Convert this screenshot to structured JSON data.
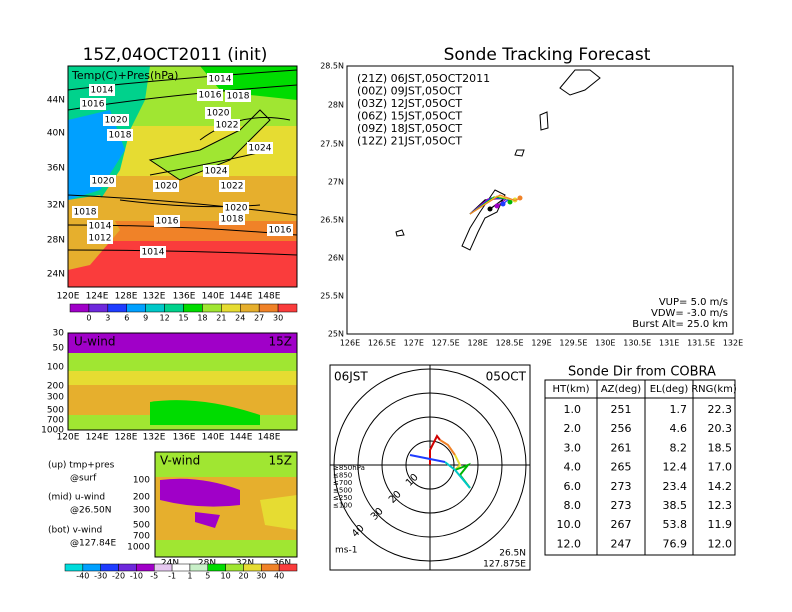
{
  "left_map": {
    "title": "15Z,04OCT2011 (init)",
    "label": "Temp(C)+Pres(hPa)",
    "lat_labels": [
      "44N",
      "40N",
      "36N",
      "32N",
      "28N",
      "24N"
    ],
    "lon_labels": [
      "120E",
      "124E",
      "128E",
      "132E",
      "136E",
      "140E",
      "144E",
      "148E"
    ],
    "isobar_labels": [
      "1014",
      "1016",
      "1014",
      "1016",
      "1018",
      "1020",
      "1018",
      "1020",
      "1022",
      "1024",
      "1024",
      "1022",
      "1020",
      "1020",
      "1020",
      "1018",
      "1016",
      "1018",
      "1014",
      "1012",
      "1016",
      "1014"
    ],
    "colorbar_labels": [
      "0",
      "3",
      "6",
      "9",
      "12",
      "15",
      "18",
      "21",
      "24",
      "27",
      "30"
    ]
  },
  "u_wind": {
    "label": "U-wind",
    "time": "15Z",
    "pressure_labels": [
      "30",
      "50",
      "100",
      "200",
      "300",
      "500",
      "700",
      "1000"
    ],
    "lon_labels": [
      "120E",
      "124E",
      "128E",
      "132E",
      "136E",
      "140E",
      "144E",
      "148E"
    ]
  },
  "notes": [
    "(up) tmp+pres",
    "@surf",
    "(mid) u-wind",
    "@26.50N",
    "(bot) v-wind",
    "@127.84E"
  ],
  "v_wind": {
    "label": "V-wind",
    "time": "15Z",
    "pressure_labels": [
      "100",
      "200",
      "300",
      "500",
      "700",
      "1000"
    ],
    "lat_labels": [
      "24N",
      "28N",
      "32N",
      "36N"
    ]
  },
  "wind_colorbar_labels": [
    "-40",
    "-30",
    "-20",
    "-10",
    "-5",
    "-1",
    "1",
    "5",
    "10",
    "20",
    "30",
    "40"
  ],
  "tracking": {
    "title": "Sonde Tracking Forecast",
    "legend": [
      {
        "text": "(21Z) 06JST,05OCT2011",
        "color": "#000000"
      },
      {
        "text": "(00Z) 09JST,05OCT",
        "color": "#a000c8"
      },
      {
        "text": "(03Z) 12JST,05OCT",
        "color": "#1e3cff"
      },
      {
        "text": "(06Z) 15JST,05OCT",
        "color": "#00b400"
      },
      {
        "text": "(09Z) 18JST,05OCT",
        "color": "#e6dc32"
      },
      {
        "text": "(12Z) 21JST,05OCT",
        "color": "#f08228"
      }
    ],
    "lat_labels": [
      "28.5N",
      "28N",
      "27.5N",
      "27N",
      "26.5N",
      "26N",
      "25.5N",
      "25N"
    ],
    "lon_labels": [
      "126E",
      "126.5E",
      "127E",
      "127.5E",
      "128E",
      "128.5E",
      "129E",
      "129.5E",
      "130E",
      "130.5E",
      "131E",
      "131.5E",
      "132E"
    ],
    "info": [
      "VUP= 5.0 m/s",
      "VDW= -3.0 m/s",
      "Burst Alt= 25.0 km"
    ]
  },
  "hodograph": {
    "time": "06JST",
    "date": "05OCT",
    "lat": "26.5N",
    "lon": "127.875E",
    "unit": "ms-1",
    "ring_labels": [
      "10",
      "20",
      "30",
      "40"
    ],
    "legend": [
      {
        "text": "≥850hPa",
        "color": "#d00000"
      },
      {
        "text": "≤850",
        "color": "#f08228"
      },
      {
        "text": "≤700",
        "color": "#e6dc32"
      },
      {
        "text": "≤500",
        "color": "#00b400"
      },
      {
        "text": "≤250",
        "color": "#00c8c8"
      },
      {
        "text": "≤100",
        "color": "#1e3cff"
      }
    ]
  },
  "table": {
    "title": "Sonde Dir from COBRA",
    "headers": [
      "HT(km)",
      "AZ(deg)",
      "EL(deg)",
      "RNG(km)"
    ],
    "rows": [
      [
        "1.0",
        "251",
        "1.7",
        "22.3"
      ],
      [
        "2.0",
        "256",
        "4.6",
        "20.3"
      ],
      [
        "3.0",
        "261",
        "8.2",
        "18.5"
      ],
      [
        "4.0",
        "265",
        "12.4",
        "17.0"
      ],
      [
        "6.0",
        "273",
        "23.4",
        "14.2"
      ],
      [
        "8.0",
        "273",
        "38.5",
        "12.3"
      ],
      [
        "10.0",
        "267",
        "53.8",
        "11.9"
      ],
      [
        "12.0",
        "247",
        "76.9",
        "12.0"
      ]
    ]
  }
}
